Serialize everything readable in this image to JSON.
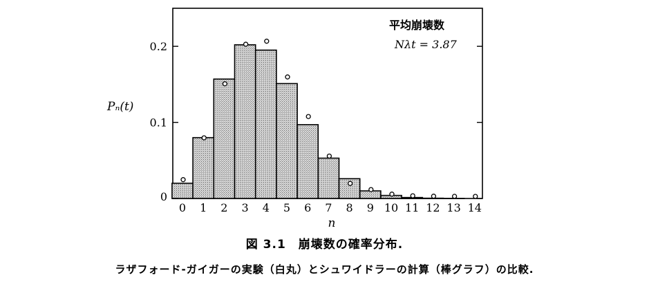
{
  "chart_data": {
    "type": "bar",
    "categories": [
      "0",
      "1",
      "2",
      "3",
      "4",
      "5",
      "6",
      "7",
      "8",
      "9",
      "10",
      "11",
      "12",
      "13",
      "14"
    ],
    "series": [
      {
        "kind": "bar",
        "values": [
          0.02,
          0.08,
          0.157,
          0.202,
          0.195,
          0.151,
          0.097,
          0.053,
          0.026,
          0.01,
          0.004,
          0.0013,
          0.0004,
          0.0001,
          0.0
        ]
      },
      {
        "kind": "point",
        "values": [
          0.022,
          0.077,
          0.148,
          0.2,
          0.204,
          0.157,
          0.105,
          0.053,
          0.017,
          0.009,
          0.003,
          0.0008,
          0.0003,
          0.0001,
          0.0
        ]
      }
    ],
    "ylabel": "Pₙ(t)",
    "xlabel": "n",
    "ylim": [
      0,
      0.25
    ],
    "yticks": [
      0,
      0.1,
      0.2
    ],
    "ytick_labels": [
      "0",
      "0.1",
      "0.2"
    ],
    "annotation": {
      "line1": "平均崩壊数",
      "line2": "Nλt = 3.87"
    },
    "grid": false,
    "legend": "none"
  },
  "caption": {
    "title": "図 3.1　崩壊数の確率分布.",
    "text": "ラザフォード-ガイガーの実験（白丸）とシュワイドラーの計算（棒グラフ）の比較."
  },
  "colors": {
    "bar_fill": "#c9c9c9",
    "axis": "#000000"
  }
}
